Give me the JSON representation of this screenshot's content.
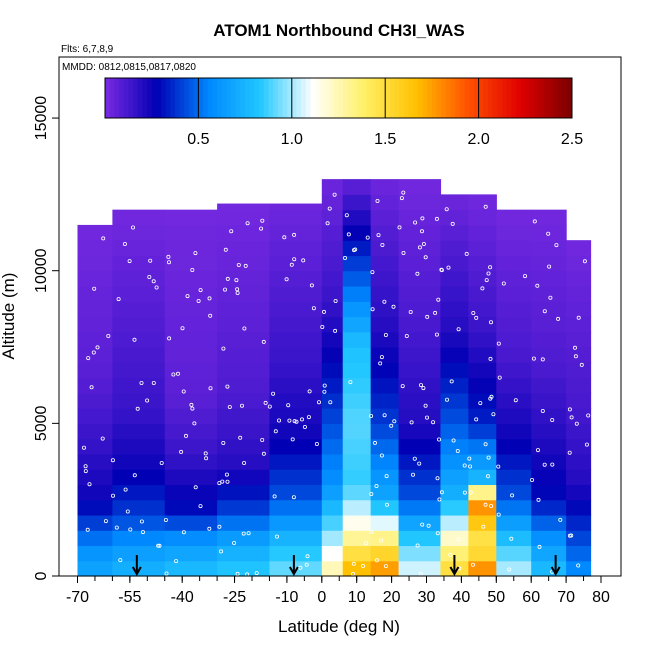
{
  "chart_data": {
    "type": "heatmap",
    "title": "ATOM1 Northbound CH3I_WAS",
    "annotations": [
      "Flts: 6,7,8,9",
      "MMDD: 0812,0815,0817,0820"
    ],
    "xlabel": "Latitude (deg N)",
    "ylabel": "Altitude (m)",
    "xlim": [
      -70,
      80
    ],
    "ylim": [
      0,
      17000
    ],
    "x_ticks": [
      -70,
      -55,
      -40,
      -25,
      -10,
      0,
      10,
      20,
      30,
      40,
      50,
      60,
      70,
      80
    ],
    "y_ticks": [
      0,
      5000,
      10000,
      15000
    ],
    "colorbar": {
      "range": [
        0,
        2.5
      ],
      "ticks": [
        0.5,
        1.0,
        1.5,
        2.0,
        2.5
      ],
      "tick_labels": [
        "0.5",
        "1.0",
        "1.5",
        "2.0",
        "2.5"
      ],
      "colors": [
        "#7B2BE2",
        "#0000B4",
        "#0088FF",
        "#22C8FF",
        "#FFFFFF",
        "#FFF066",
        "#FFC000",
        "#FF5000",
        "#E00000",
        "#7A0000"
      ]
    },
    "arrows_x": [
      -53,
      -8,
      38,
      67
    ],
    "zones": [
      {
        "lat": [
          -70,
          -60
        ],
        "top": 11500,
        "profile": [
          [
            0,
            0.7
          ],
          [
            800,
            0.6
          ],
          [
            2500,
            0.25
          ],
          [
            4500,
            0.15
          ],
          [
            6500,
            0.08
          ],
          [
            11500,
            0.02
          ]
        ]
      },
      {
        "lat": [
          -60,
          -45
        ],
        "top": 12000,
        "profile": [
          [
            0,
            0.75
          ],
          [
            800,
            0.65
          ],
          [
            2000,
            0.4
          ],
          [
            3500,
            0.25
          ],
          [
            5500,
            0.15
          ],
          [
            12000,
            0.02
          ]
        ]
      },
      {
        "lat": [
          -45,
          -30
        ],
        "top": 12000,
        "profile": [
          [
            0,
            0.8
          ],
          [
            1000,
            0.65
          ],
          [
            2200,
            0.3
          ],
          [
            4000,
            0.15
          ],
          [
            6000,
            0.07
          ],
          [
            12000,
            0.02
          ]
        ]
      },
      {
        "lat": [
          -30,
          -15
        ],
        "top": 12200,
        "profile": [
          [
            0,
            0.85
          ],
          [
            1000,
            0.7
          ],
          [
            2200,
            0.4
          ],
          [
            3500,
            0.2
          ],
          [
            6000,
            0.1
          ],
          [
            12200,
            0.02
          ]
        ]
      },
      {
        "lat": [
          -15,
          0
        ],
        "top": 12200,
        "profile": [
          [
            0,
            0.95
          ],
          [
            1000,
            0.8
          ],
          [
            2500,
            0.45
          ],
          [
            4500,
            0.25
          ],
          [
            7000,
            0.15
          ],
          [
            12200,
            0.03
          ]
        ]
      },
      {
        "lat": [
          0,
          6
        ],
        "top": 13000,
        "profile": [
          [
            0,
            1.3
          ],
          [
            1000,
            1.05
          ],
          [
            3000,
            0.6
          ],
          [
            6000,
            0.35
          ],
          [
            9000,
            0.15
          ],
          [
            13000,
            0.03
          ]
        ]
      },
      {
        "lat": [
          6,
          14
        ],
        "top": 13000,
        "profile": [
          [
            0,
            1.75
          ],
          [
            1000,
            1.4
          ],
          [
            1500,
            1.2
          ],
          [
            3000,
            0.85
          ],
          [
            5000,
            0.9
          ],
          [
            7500,
            0.8
          ],
          [
            9500,
            0.5
          ],
          [
            11000,
            0.3
          ],
          [
            13000,
            0.05
          ]
        ]
      },
      {
        "lat": [
          14,
          22
        ],
        "top": 13000,
        "profile": [
          [
            0,
            1.85
          ],
          [
            1000,
            1.45
          ],
          [
            2500,
            0.7
          ],
          [
            5000,
            0.4
          ],
          [
            8000,
            0.2
          ],
          [
            13000,
            0.03
          ]
        ]
      },
      {
        "lat": [
          22,
          34
        ],
        "top": 13000,
        "profile": [
          [
            0,
            1.1
          ],
          [
            1000,
            0.9
          ],
          [
            2500,
            0.45
          ],
          [
            5000,
            0.2
          ],
          [
            8000,
            0.12
          ],
          [
            13000,
            0.02
          ]
        ]
      },
      {
        "lat": [
          34,
          42
        ],
        "top": 12500,
        "profile": [
          [
            0,
            1.55
          ],
          [
            1000,
            1.3
          ],
          [
            2500,
            0.75
          ],
          [
            5000,
            0.45
          ],
          [
            8000,
            0.2
          ],
          [
            12500,
            0.03
          ]
        ]
      },
      {
        "lat": [
          42,
          50
        ],
        "top": 12500,
        "profile": [
          [
            0,
            1.9
          ],
          [
            1000,
            1.4
          ],
          [
            2500,
            1.85
          ],
          [
            3000,
            0.8
          ],
          [
            5000,
            0.35
          ],
          [
            8000,
            0.15
          ],
          [
            12500,
            0.02
          ]
        ]
      },
      {
        "lat": [
          50,
          60
        ],
        "top": 12000,
        "profile": [
          [
            0,
            1.05
          ],
          [
            1000,
            0.85
          ],
          [
            2500,
            0.45
          ],
          [
            4500,
            0.25
          ],
          [
            7000,
            0.12
          ],
          [
            12000,
            0.02
          ]
        ]
      },
      {
        "lat": [
          60,
          70
        ],
        "top": 12000,
        "profile": [
          [
            0,
            0.8
          ],
          [
            1000,
            0.65
          ],
          [
            2500,
            0.3
          ],
          [
            4500,
            0.2
          ],
          [
            7000,
            0.1
          ],
          [
            12000,
            0.02
          ]
        ]
      },
      {
        "lat": [
          70,
          77
        ],
        "top": 11000,
        "profile": [
          [
            0,
            0.6
          ],
          [
            1000,
            0.45
          ],
          [
            3000,
            0.2
          ],
          [
            5500,
            0.12
          ],
          [
            11000,
            0.02
          ]
        ]
      }
    ]
  }
}
